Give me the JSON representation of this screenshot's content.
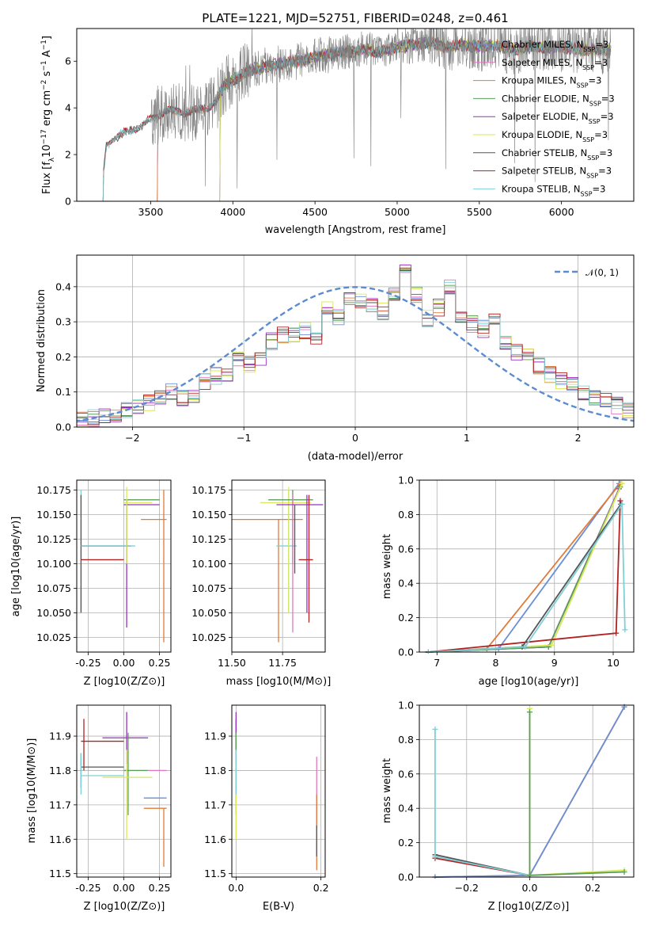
{
  "figure": {
    "title": "PLATE=1221, MJD=52751, FIBERID=0248, z=0.461"
  },
  "chart_data": [
    {
      "type": "line",
      "panel": "spectrum",
      "xlabel": "wavelength [Angstrom, rest frame]",
      "ylabel": "Flux [f_λ10^{-17} erg cm^{-2} s^{-1} A^{-1}]",
      "xlim": [
        3050,
        6440
      ],
      "ylim": [
        0,
        7.4
      ],
      "xticks": [
        3500,
        4000,
        4500,
        5000,
        5500,
        6000
      ],
      "yticks": [
        0,
        2,
        4,
        6
      ],
      "observed_color": "#7f7f7f",
      "legend_position": "upper right",
      "series": [
        {
          "name": "Chabrier MILES, N_SSP=3",
          "color": "#6a8fd6",
          "start": 3540
        },
        {
          "name": "Salpeter MILES, N_SSP=3",
          "color": "#e377c2",
          "start": 3540
        },
        {
          "name": "Kroupa MILES, N_SSP=3",
          "color": "#e07b39",
          "start": 3540
        },
        {
          "name": "Chabrier ELODIE, N_SSP=3",
          "color": "#5a9e5a",
          "start": 3920
        },
        {
          "name": "Salpeter ELODIE, N_SSP=3",
          "color": "#9b30c0",
          "start": 3920
        },
        {
          "name": "Kroupa ELODIE, N_SSP=3",
          "color": "#d9e85a",
          "start": 3920
        },
        {
          "name": "Chabrier STELIB, N_SSP=3",
          "color": "#555555",
          "start": 3210
        },
        {
          "name": "Salpeter STELIB, N_SSP=3",
          "color": "#b22222",
          "start": 3210
        },
        {
          "name": "Kroupa STELIB, N_SSP=3",
          "color": "#7fcfd6",
          "start": 3210
        }
      ],
      "continuum": {
        "x": [
          3200,
          3230,
          3300,
          3400,
          3500,
          3600,
          3700,
          3800,
          3850,
          3900,
          3950,
          4000,
          4100,
          4200,
          4300,
          4400,
          4500,
          4600,
          4700,
          4800,
          4900,
          5000,
          5100,
          5200,
          5300,
          5400,
          5500,
          5600,
          5700,
          5800,
          5900,
          6000,
          6100,
          6200,
          6300
        ],
        "y": [
          0.2,
          2.4,
          2.8,
          3.1,
          3.5,
          3.9,
          3.8,
          3.9,
          4.0,
          4.3,
          5.0,
          5.2,
          5.6,
          5.8,
          5.9,
          6.0,
          6.2,
          6.3,
          6.4,
          6.5,
          6.4,
          6.6,
          6.7,
          6.8,
          6.6,
          6.7,
          6.6,
          6.7,
          6.5,
          6.6,
          6.6,
          6.6,
          6.5,
          6.5,
          6.5
        ]
      }
    },
    {
      "type": "line",
      "panel": "residuals",
      "xlabel": "(data-model)/error",
      "ylabel": "Normed distribution",
      "xlim": [
        -2.5,
        2.5
      ],
      "ylim": [
        0,
        0.49
      ],
      "xticks": [
        -2,
        -1,
        0,
        1,
        2
      ],
      "yticks": [
        0.0,
        0.1,
        0.2,
        0.3,
        0.4
      ],
      "legend_label": "𝒩(0, 1)",
      "legend_position": "upper right",
      "gaussian": {
        "mu": 0,
        "sigma": 1,
        "color": "#5b8bd0"
      },
      "histogram_bin_edges": [
        -2.5,
        2.5,
        50
      ],
      "histogram_base": [
        0.02,
        0.025,
        0.03,
        0.035,
        0.045,
        0.055,
        0.07,
        0.085,
        0.1,
        0.08,
        0.095,
        0.13,
        0.145,
        0.155,
        0.19,
        0.18,
        0.2,
        0.245,
        0.26,
        0.265,
        0.275,
        0.26,
        0.335,
        0.31,
        0.36,
        0.365,
        0.35,
        0.33,
        0.385,
        0.445,
        0.38,
        0.31,
        0.34,
        0.4,
        0.315,
        0.295,
        0.28,
        0.3,
        0.24,
        0.215,
        0.2,
        0.175,
        0.15,
        0.13,
        0.12,
        0.095,
        0.085,
        0.075,
        0.06,
        0.045
      ]
    },
    {
      "type": "scatter",
      "panel": "age-vs-Z",
      "xlabel": "Z [log10(Z/Z⊙)]",
      "ylabel": "age  [log10(age/yr)]",
      "xlim": [
        -0.33,
        0.33
      ],
      "ylim": [
        10.01,
        10.185
      ],
      "xticks": [
        "-0.25",
        "0.00",
        "0.25"
      ],
      "yticks": [
        "10.025",
        "10.050",
        "10.075",
        "10.100",
        "10.125",
        "10.150",
        "10.175"
      ]
    },
    {
      "type": "scatter",
      "panel": "age-vs-mass",
      "xlabel": "mass [log10(M/M⊙)]",
      "ylabel": "",
      "xlim": [
        11.5,
        11.96
      ],
      "ylim": [
        10.01,
        10.185
      ],
      "xticks": [
        "11.50",
        "11.75"
      ],
      "yticks": [
        "10.025",
        "10.050",
        "10.075",
        "10.100",
        "10.125",
        "10.150",
        "10.175"
      ]
    },
    {
      "type": "line",
      "panel": "mass-weight-vs-age",
      "xlabel": "age  [log10(age/yr)]",
      "ylabel": "mass weight",
      "xlim": [
        6.7,
        10.35
      ],
      "ylim": [
        0,
        1.0
      ],
      "xticks": [
        "7",
        "8",
        "9",
        "10"
      ],
      "yticks": [
        "0.0",
        "0.2",
        "0.4",
        "0.6",
        "0.8",
        "1.0"
      ],
      "series": [
        {
          "color": "#6a8fd6",
          "x": [
            6.85,
            8.05,
            10.1
          ],
          "y": [
            0.0,
            0.02,
            0.98
          ]
        },
        {
          "color": "#e07b39",
          "x": [
            6.85,
            7.85,
            10.12
          ],
          "y": [
            0.0,
            0.02,
            0.98
          ]
        },
        {
          "color": "#9b30c0",
          "x": [
            6.85,
            8.9,
            10.1
          ],
          "y": [
            0.0,
            0.03,
            0.95
          ]
        },
        {
          "color": "#5a9e5a",
          "x": [
            6.85,
            8.9,
            10.12
          ],
          "y": [
            0.0,
            0.03,
            0.96
          ]
        },
        {
          "color": "#d9e85a",
          "x": [
            6.85,
            8.95,
            10.15
          ],
          "y": [
            0.0,
            0.04,
            0.98
          ]
        },
        {
          "color": "#b22222",
          "x": [
            6.85,
            10.05,
            10.12
          ],
          "y": [
            0.0,
            0.11,
            0.88
          ]
        },
        {
          "color": "#555555",
          "x": [
            6.85,
            8.45,
            10.13
          ],
          "y": [
            0.0,
            0.03,
            0.86
          ]
        },
        {
          "color": "#7fcfd6",
          "x": [
            6.85,
            8.5,
            10.15,
            10.2
          ],
          "y": [
            0.0,
            0.03,
            0.86,
            0.13
          ]
        }
      ]
    },
    {
      "type": "scatter",
      "panel": "mass-vs-Z",
      "xlabel": "Z [log10(Z/Z⊙)]",
      "ylabel": "mass [log10(M/M⊙)]",
      "xlim": [
        -0.33,
        0.33
      ],
      "ylim": [
        11.49,
        11.99
      ],
      "xticks": [
        "-0.25",
        "0.00",
        "0.25"
      ],
      "yticks": [
        "11.5",
        "11.6",
        "11.7",
        "11.8",
        "11.9"
      ]
    },
    {
      "type": "scatter",
      "panel": "mass-vs-ebv",
      "xlabel": "E(B-V)",
      "ylabel": "",
      "xlim": [
        -0.01,
        0.21
      ],
      "ylim": [
        11.49,
        11.99
      ],
      "xticks": [
        "0.0",
        "0.2"
      ],
      "yticks": [
        "11.5",
        "11.6",
        "11.7",
        "11.8",
        "11.9"
      ]
    },
    {
      "type": "line",
      "panel": "mass-weight-vs-Z",
      "xlabel": "Z [log10(Z/Z⊙)]",
      "ylabel": "mass weight",
      "xlim": [
        -0.35,
        0.33
      ],
      "ylim": [
        0,
        1.0
      ],
      "xticks": [
        "-0.2",
        "0.0",
        "0.2"
      ],
      "yticks": [
        "0.0",
        "0.2",
        "0.4",
        "0.6",
        "0.8",
        "1.0"
      ],
      "series": [
        {
          "color": "#e07b39",
          "x": [
            -0.3,
            0.0,
            0.3
          ],
          "y": [
            0.0,
            0.01,
            0.99
          ]
        },
        {
          "color": "#6a8fd6",
          "x": [
            -0.3,
            0.0,
            0.3
          ],
          "y": [
            0.0,
            0.01,
            0.99
          ]
        },
        {
          "color": "#b22222",
          "x": [
            -0.3,
            0.0
          ],
          "y": [
            0.11,
            0.01
          ]
        },
        {
          "color": "#555555",
          "x": [
            -0.3,
            0.0
          ],
          "y": [
            0.13,
            0.01
          ]
        },
        {
          "color": "#7fcfd6",
          "x": [
            -0.3,
            -0.3,
            0.0
          ],
          "y": [
            0.86,
            0.12,
            0.01
          ]
        },
        {
          "color": "#d9e85a",
          "x": [
            0.0,
            0.0,
            0.3
          ],
          "y": [
            0.98,
            0.01,
            0.04
          ]
        },
        {
          "color": "#5a9e5a",
          "x": [
            0.0,
            0.0,
            0.3
          ],
          "y": [
            0.96,
            0.01,
            0.03
          ]
        }
      ]
    }
  ],
  "errorbars": {
    "age_vs_Z": [
      {
        "c": "#7fcfd6",
        "x": -0.3,
        "y": 10.11,
        "xe": [
          -0.3,
          -0.3
        ],
        "ye": [
          10.05,
          10.175
        ]
      },
      {
        "c": "#555555",
        "x": -0.3,
        "y": 10.118,
        "xe": [
          -0.3,
          0.05
        ],
        "ye": [
          10.05,
          10.17
        ]
      },
      {
        "c": "#7fcfd6",
        "x": -0.3,
        "y": 10.118,
        "xe": [
          -0.3,
          0.08
        ],
        "ye": [
          10.118,
          10.118
        ]
      },
      {
        "c": "#b22222",
        "x": -0.02,
        "y": 10.104,
        "xe": [
          -0.3,
          0.0
        ],
        "ye": [
          10.104,
          10.104
        ]
      },
      {
        "c": "#9b30c0",
        "x": 0.02,
        "y": 10.16,
        "xe": [
          0.0,
          0.25
        ],
        "ye": [
          10.035,
          10.165
        ]
      },
      {
        "c": "#5a9e5a",
        "x": 0.02,
        "y": 10.165,
        "xe": [
          0.0,
          0.25
        ],
        "ye": [
          10.1,
          10.165
        ]
      },
      {
        "c": "#d9e85a",
        "x": 0.02,
        "y": 10.162,
        "xe": [
          0.0,
          0.2
        ],
        "ye": [
          10.1,
          10.178
        ]
      },
      {
        "c": "#e07b39",
        "x": 0.28,
        "y": 10.145,
        "xe": [
          0.12,
          0.3
        ],
        "ye": [
          10.02,
          10.175
        ]
      }
    ],
    "age_vs_mass": [
      {
        "c": "#e07b39",
        "x": 11.73,
        "y": 10.145,
        "xe": [
          11.5,
          11.85
        ],
        "ye": [
          10.02,
          10.145
        ]
      },
      {
        "c": "#7fcfd6",
        "x": 11.78,
        "y": 10.118,
        "xe": [
          11.72,
          11.82
        ],
        "ye": [
          10.05,
          10.175
        ]
      },
      {
        "c": "#d9e85a",
        "x": 11.78,
        "y": 10.162,
        "xe": [
          11.64,
          11.89
        ],
        "ye": [
          10.05,
          10.178
        ]
      },
      {
        "c": "#5a9e5a",
        "x": 11.8,
        "y": 10.165,
        "xe": [
          11.68,
          11.9
        ],
        "ye": [
          10.1,
          10.175
        ]
      },
      {
        "c": "#e377c2",
        "x": 11.8,
        "y": 10.16,
        "xe": [
          11.8,
          11.8
        ],
        "ye": [
          10.03,
          10.17
        ]
      },
      {
        "c": "#555555",
        "x": 11.81,
        "y": 10.118,
        "xe": [
          11.81,
          11.81
        ],
        "ye": [
          10.09,
          10.16
        ]
      },
      {
        "c": "#9b30c0",
        "x": 11.87,
        "y": 10.16,
        "xe": [
          11.72,
          11.95
        ],
        "ye": [
          10.05,
          10.17
        ]
      },
      {
        "c": "#b22222",
        "x": 11.88,
        "y": 10.104,
        "xe": [
          11.83,
          11.9
        ],
        "ye": [
          10.04,
          10.17
        ]
      }
    ],
    "mass_vs_Z": [
      {
        "c": "#b22222",
        "x": -0.28,
        "y": 11.885,
        "xe": [
          -0.3,
          0.0
        ],
        "ye": [
          11.8,
          11.95
        ]
      },
      {
        "c": "#555555",
        "x": -0.3,
        "y": 11.81,
        "xe": [
          -0.3,
          0.0
        ],
        "ye": [
          11.75,
          11.85
        ]
      },
      {
        "c": "#7fcfd6",
        "x": -0.3,
        "y": 11.785,
        "xe": [
          -0.3,
          0.0
        ],
        "ye": [
          11.73,
          11.85
        ]
      },
      {
        "c": "#9b30c0",
        "x": 0.02,
        "y": 11.895,
        "xe": [
          -0.15,
          0.17
        ],
        "ye": [
          11.82,
          11.97
        ]
      },
      {
        "c": "#5a9e5a",
        "x": 0.03,
        "y": 11.8,
        "xe": [
          0.0,
          0.17
        ],
        "ye": [
          11.67,
          11.91
        ]
      },
      {
        "c": "#d9e85a",
        "x": 0.02,
        "y": 11.78,
        "xe": [
          -0.15,
          0.2
        ],
        "ye": [
          11.6,
          11.86
        ]
      },
      {
        "c": "#e377c2",
        "x": 0.25,
        "y": 11.8,
        "xe": [
          0.17,
          0.3
        ],
        "ye": [
          11.8,
          11.8
        ]
      },
      {
        "c": "#6a8fd6",
        "x": 0.25,
        "y": 11.72,
        "xe": [
          0.14,
          0.3
        ],
        "ye": [
          11.72,
          11.72
        ]
      },
      {
        "c": "#e07b39",
        "x": 0.28,
        "y": 11.69,
        "xe": [
          0.14,
          0.3
        ],
        "ye": [
          11.52,
          11.69
        ]
      }
    ],
    "mass_vs_ebv": [
      {
        "c": "#b22222",
        "x": 0.0,
        "y": 11.885,
        "xe": [
          0.0,
          0.0
        ],
        "ye": [
          11.82,
          11.95
        ]
      },
      {
        "c": "#9b30c0",
        "x": 0.0,
        "y": 11.9,
        "xe": [
          0.0,
          0.0
        ],
        "ye": [
          11.82,
          11.97
        ]
      },
      {
        "c": "#5a9e5a",
        "x": 0.0,
        "y": 11.8,
        "xe": [
          0.0,
          0.0
        ],
        "ye": [
          11.67,
          11.91
        ]
      },
      {
        "c": "#d9e85a",
        "x": 0.0,
        "y": 11.78,
        "xe": [
          0.0,
          0.0
        ],
        "ye": [
          11.6,
          11.86
        ]
      },
      {
        "c": "#7fcfd6",
        "x": 0.0,
        "y": 11.78,
        "xe": [
          0.0,
          0.0
        ],
        "ye": [
          11.73,
          11.86
        ]
      },
      {
        "c": "#e377c2",
        "x": 0.19,
        "y": 11.8,
        "xe": [
          0.19,
          0.19
        ],
        "ye": [
          11.6,
          11.84
        ]
      },
      {
        "c": "#e07b39",
        "x": 0.19,
        "y": 11.69,
        "xe": [
          0.19,
          0.19
        ],
        "ye": [
          11.51,
          11.73
        ]
      },
      {
        "c": "#555555",
        "x": 0.19,
        "y": 11.6,
        "xe": [
          0.19,
          0.19
        ],
        "ye": [
          11.55,
          11.64
        ]
      }
    ]
  }
}
